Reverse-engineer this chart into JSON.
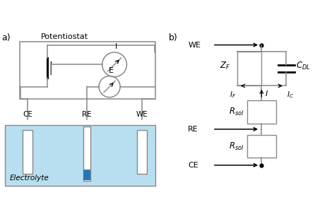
{
  "bg_color": "#ffffff",
  "electrolyte_color": "#b8dff0",
  "line_color": "#888888",
  "blue_fill": "#2277bb",
  "label_a": "a)",
  "label_b": "b)",
  "potentiostat_label": "Potentiostat",
  "electrolyte_label": "Electrolyte"
}
